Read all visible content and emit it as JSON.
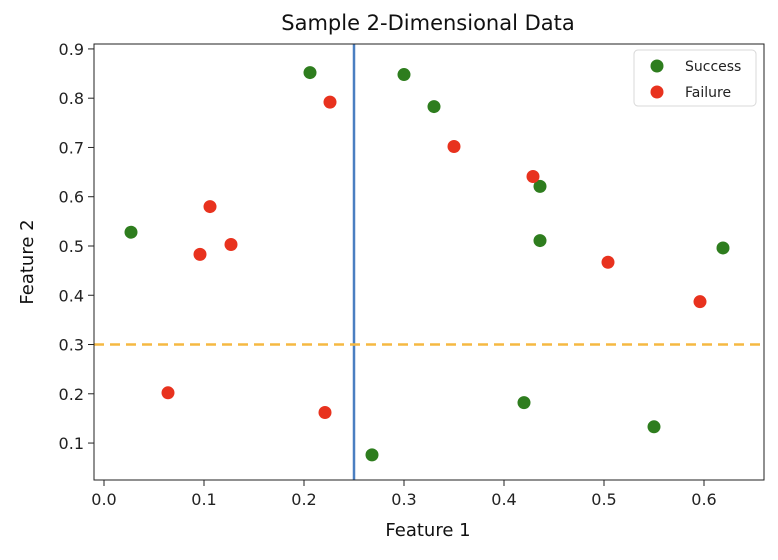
{
  "chart_data": {
    "type": "scatter",
    "title": "Sample 2-Dimensional Data",
    "xlabel": "Feature 1",
    "ylabel": "Feature 2",
    "xlim": [
      -0.01,
      0.66
    ],
    "ylim": [
      0.025,
      0.91
    ],
    "xticks": [
      "0.0",
      "0.1",
      "0.2",
      "0.3",
      "0.4",
      "0.5",
      "0.6"
    ],
    "yticks": [
      "0.1",
      "0.2",
      "0.3",
      "0.4",
      "0.5",
      "0.6",
      "0.7",
      "0.8",
      "0.9"
    ],
    "grid": false,
    "legend_position": "top-right",
    "series": [
      {
        "name": "Success",
        "color": "#2e7d1e",
        "points": [
          [
            0.027,
            0.528
          ],
          [
            0.206,
            0.852
          ],
          [
            0.3,
            0.848
          ],
          [
            0.33,
            0.783
          ],
          [
            0.436,
            0.621
          ],
          [
            0.436,
            0.511
          ],
          [
            0.619,
            0.496
          ],
          [
            0.42,
            0.182
          ],
          [
            0.55,
            0.133
          ],
          [
            0.268,
            0.076
          ]
        ]
      },
      {
        "name": "Failure",
        "color": "#e8321e",
        "points": [
          [
            0.226,
            0.792
          ],
          [
            0.35,
            0.702
          ],
          [
            0.429,
            0.641
          ],
          [
            0.106,
            0.58
          ],
          [
            0.127,
            0.503
          ],
          [
            0.096,
            0.483
          ],
          [
            0.504,
            0.467
          ],
          [
            0.596,
            0.387
          ],
          [
            0.064,
            0.202
          ],
          [
            0.221,
            0.162
          ]
        ]
      }
    ],
    "reference_lines": [
      {
        "orientation": "vertical",
        "value": 0.25,
        "color": "#4a7fc1",
        "style": "solid"
      },
      {
        "orientation": "horizontal",
        "value": 0.3,
        "color": "#f5b942",
        "style": "dashed"
      }
    ]
  }
}
